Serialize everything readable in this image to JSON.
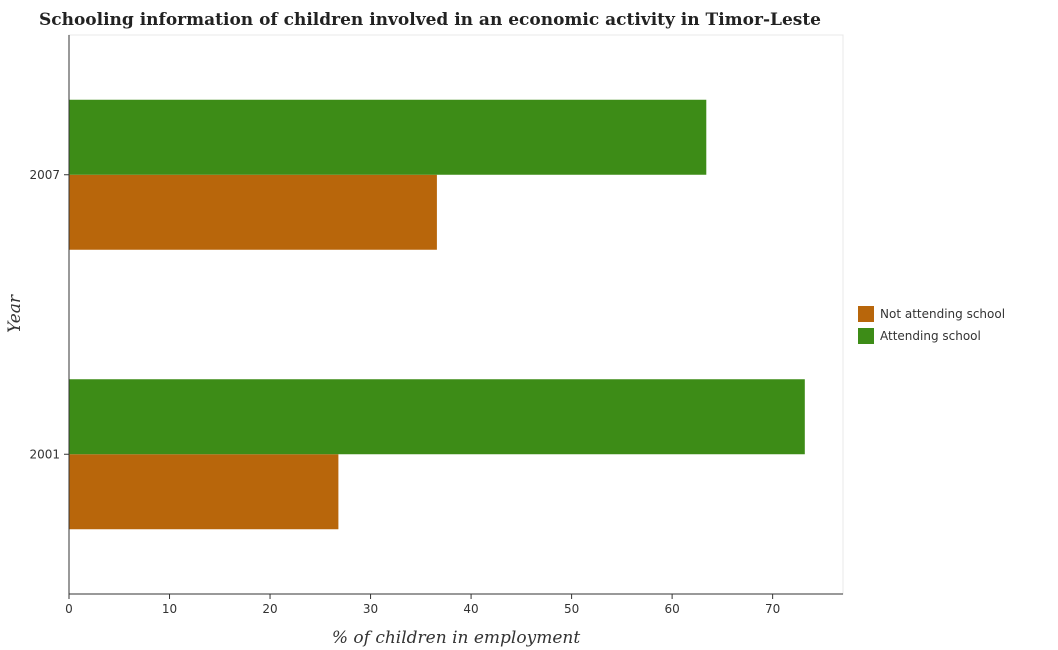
{
  "chart_data": {
    "type": "bar",
    "orientation": "horizontal",
    "title": "Schooling information of children involved in an economic activity in Timor-Leste",
    "xlabel": "% of children in employment",
    "ylabel": "Year",
    "categories": [
      "2001",
      "2007"
    ],
    "series": [
      {
        "name": "Not attending school",
        "color": "#b8660b",
        "values": [
          26.8,
          36.6
        ]
      },
      {
        "name": "Attending school",
        "color": "#3d8c17",
        "values": [
          73.2,
          63.4
        ]
      }
    ],
    "xlim": [
      0,
      77
    ],
    "xticks": [
      0,
      10,
      20,
      30,
      40,
      50,
      60,
      70
    ],
    "grid": false,
    "legend_position": "right"
  }
}
